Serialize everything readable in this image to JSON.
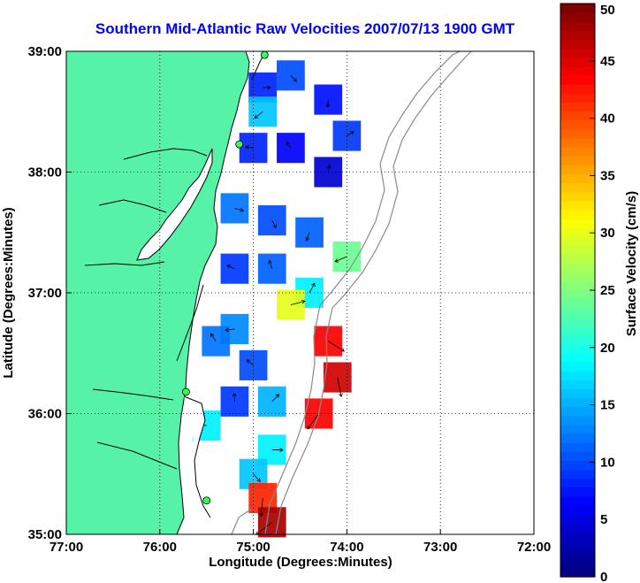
{
  "chart_data": {
    "type": "heatmap",
    "title": "Southern Mid-Atlantic Raw Velocities 2007/07/13 1900 GMT",
    "xlabel": "Longitude (Degrees:Minutes)",
    "ylabel": "Latitude (Degrees:Minutes)",
    "xlim": [
      -77,
      -72
    ],
    "ylim": [
      35,
      39
    ],
    "x_ticks": [
      -77,
      -76,
      -75,
      -74,
      -73,
      -72
    ],
    "x_tick_labels": [
      "77:00",
      "76:00",
      "75:00",
      "74:00",
      "73:00",
      "72:00"
    ],
    "y_ticks": [
      35,
      36,
      37,
      38,
      39
    ],
    "y_tick_labels": [
      "35:00",
      "36:00",
      "37:00",
      "38:00",
      "39:00"
    ],
    "grid": "dotted",
    "colorbar": {
      "label": "Surface Velocity (cm/s)",
      "range": [
        0,
        50
      ],
      "ticks": [
        0,
        5,
        10,
        15,
        20,
        25,
        30,
        35,
        40,
        45,
        50
      ],
      "colormap": "jet"
    },
    "colors": {
      "land": "#55f2a8",
      "coast_outline": "#000000",
      "bathymetry": "#808080",
      "title": "#0000ff"
    },
    "field": [
      {
        "lon": -74.9,
        "lat": 38.7,
        "speed": 8
      },
      {
        "lon": -74.6,
        "lat": 38.8,
        "speed": 10
      },
      {
        "lon": -74.2,
        "lat": 38.6,
        "speed": 7
      },
      {
        "lon": -74.9,
        "lat": 38.5,
        "speed": 16
      },
      {
        "lon": -75.0,
        "lat": 38.2,
        "speed": 8
      },
      {
        "lon": -74.6,
        "lat": 38.2,
        "speed": 6
      },
      {
        "lon": -74.2,
        "lat": 38.0,
        "speed": 4
      },
      {
        "lon": -74.0,
        "lat": 38.3,
        "speed": 9
      },
      {
        "lon": -75.2,
        "lat": 37.7,
        "speed": 12
      },
      {
        "lon": -74.8,
        "lat": 37.6,
        "speed": 10
      },
      {
        "lon": -74.4,
        "lat": 37.5,
        "speed": 11
      },
      {
        "lon": -74.0,
        "lat": 37.3,
        "speed": 24
      },
      {
        "lon": -75.2,
        "lat": 37.2,
        "speed": 9
      },
      {
        "lon": -74.8,
        "lat": 37.2,
        "speed": 11
      },
      {
        "lon": -74.4,
        "lat": 37.0,
        "speed": 18
      },
      {
        "lon": -74.6,
        "lat": 36.9,
        "speed": 30
      },
      {
        "lon": -74.2,
        "lat": 36.6,
        "speed": 44
      },
      {
        "lon": -74.1,
        "lat": 36.3,
        "speed": 46
      },
      {
        "lon": -74.3,
        "lat": 36.0,
        "speed": 44
      },
      {
        "lon": -75.2,
        "lat": 36.7,
        "speed": 13
      },
      {
        "lon": -75.0,
        "lat": 36.4,
        "speed": 10
      },
      {
        "lon": -75.2,
        "lat": 36.1,
        "speed": 9
      },
      {
        "lon": -74.8,
        "lat": 36.1,
        "speed": 15
      },
      {
        "lon": -74.8,
        "lat": 35.7,
        "speed": 18
      },
      {
        "lon": -75.0,
        "lat": 35.5,
        "speed": 16
      },
      {
        "lon": -74.9,
        "lat": 35.3,
        "speed": 42
      },
      {
        "lon": -74.8,
        "lat": 35.1,
        "speed": 48
      },
      {
        "lon": -75.5,
        "lat": 35.9,
        "speed": 18
      },
      {
        "lon": -75.4,
        "lat": 36.6,
        "speed": 12
      }
    ],
    "radar_sites": [
      {
        "lon": -74.88,
        "lat": 38.97
      },
      {
        "lon": -75.15,
        "lat": 38.23
      },
      {
        "lon": -75.72,
        "lat": 36.18
      },
      {
        "lon": -75.5,
        "lat": 35.28
      }
    ]
  }
}
